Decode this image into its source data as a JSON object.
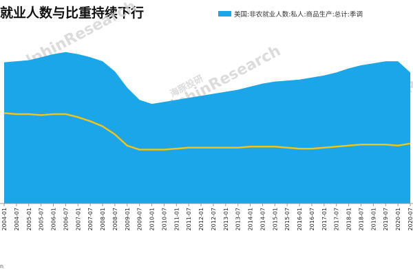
{
  "title": "就业人数与比重持续下行",
  "source_text": "n",
  "watermarks": [
    "海豚投研",
    "DolphinResearch"
  ],
  "colors": {
    "area": "#1aa6e8",
    "line": "#f2c318",
    "axis": "#999999"
  },
  "chart_data": {
    "type": "area",
    "title": "就业人数与比重持续下行",
    "legend_position": "top-right",
    "grid": false,
    "categories": [
      "2004-01",
      "2004-07",
      "2005-01",
      "2005-07",
      "2006-01",
      "2006-07",
      "2007-01",
      "2007-07",
      "2008-01",
      "2008-07",
      "2009-01",
      "2009-07",
      "2010-01",
      "2010-07",
      "2011-01",
      "2011-07",
      "2012-01",
      "2012-07",
      "2013-01",
      "2013-07",
      "2014-01",
      "2014-07",
      "2015-01",
      "2015-07",
      "2016-01",
      "2016-07",
      "2017-01",
      "2017-07",
      "2018-01",
      "2018-07",
      "2019-01",
      "2019-07",
      "2020-01",
      "2020-07"
    ],
    "series": [
      {
        "name": "美国:非农就业人数:私人:商品生产:总计:季调",
        "type": "area",
        "values": [
          21.9,
          22.0,
          22.1,
          22.4,
          22.7,
          22.9,
          22.7,
          22.4,
          22.0,
          21.0,
          19.4,
          18.2,
          17.8,
          18.0,
          18.2,
          18.4,
          18.6,
          18.8,
          19.0,
          19.2,
          19.5,
          19.8,
          20.0,
          20.1,
          20.2,
          20.4,
          20.6,
          20.9,
          21.3,
          21.6,
          21.8,
          22.0,
          22.0,
          20.9
        ]
      },
      {
        "name": "",
        "type": "line",
        "values": [
          16.9,
          16.8,
          16.8,
          16.7,
          16.8,
          16.8,
          16.5,
          16.1,
          15.6,
          14.8,
          13.7,
          13.3,
          13.3,
          13.3,
          13.4,
          13.5,
          13.5,
          13.5,
          13.5,
          13.5,
          13.6,
          13.6,
          13.6,
          13.5,
          13.4,
          13.4,
          13.5,
          13.6,
          13.7,
          13.8,
          13.8,
          13.8,
          13.7,
          13.9
        ]
      }
    ]
  }
}
